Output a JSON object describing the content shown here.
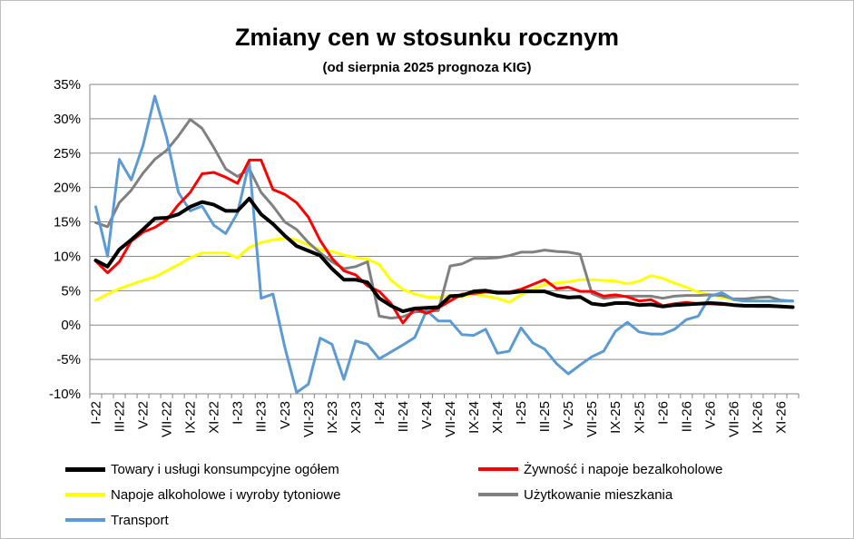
{
  "chart_data": {
    "type": "line",
    "title": "Zmiany cen w stosunku rocznym",
    "subtitle": "(od sierpnia 2025 prognoza  KIG)",
    "ylim": [
      -10,
      35
    ],
    "yticks": [
      "35%",
      "30%",
      "25%",
      "20%",
      "15%",
      "10%",
      "5%",
      "0%",
      "-5%",
      "-10%"
    ],
    "grid": true,
    "legend_position": "bottom",
    "x": [
      "I-22",
      "II-22",
      "III-22",
      "IV-22",
      "V-22",
      "VI-22",
      "VII-22",
      "VIII-22",
      "IX-22",
      "X-22",
      "XI-22",
      "XII-22",
      "I-23",
      "II-23",
      "III-23",
      "IV-23",
      "V-23",
      "VI-23",
      "VII-23",
      "VIII-23",
      "IX-23",
      "X-23",
      "XI-23",
      "XII-23",
      "I-24",
      "II-24",
      "III-24",
      "IV-24",
      "V-24",
      "VI-24",
      "VII-24",
      "VIII-24",
      "IX-24",
      "X-24",
      "XI-24",
      "XII-24",
      "I-25",
      "II-25",
      "III-25",
      "IV-25",
      "V-25",
      "VI-25",
      "VII-25",
      "VIII-25",
      "IX-25",
      "X-25",
      "XI-25",
      "XII-25",
      "I-26",
      "II-26",
      "III-26",
      "IV-26",
      "V-26",
      "VI-26",
      "VII-26",
      "VIII-26",
      "IX-26",
      "X-26",
      "XI-26",
      "XII-26"
    ],
    "xtick_labels": [
      "I-22",
      "III-22",
      "V-22",
      "VII-22",
      "IX-22",
      "XI-22",
      "I-23",
      "III-23",
      "V-23",
      "VII-23",
      "IX-23",
      "XI-23",
      "I-24",
      "III-24",
      "V-24",
      "VII-24",
      "IX-24",
      "XI-24",
      "I-25",
      "III-25",
      "V-25",
      "VII-25",
      "IX-25",
      "XI-25",
      "I-26",
      "III-26",
      "V-26",
      "VII-26",
      "IX-26",
      "XI-26"
    ],
    "series": [
      {
        "name": "Towary i usługi konsumpcyjne ogółem",
        "color": "#000000",
        "width": 4,
        "values": [
          9.4,
          8.5,
          11.0,
          12.4,
          13.9,
          15.5,
          15.6,
          16.1,
          17.2,
          17.9,
          17.5,
          16.6,
          16.6,
          18.4,
          16.1,
          14.7,
          13.0,
          11.5,
          10.8,
          10.1,
          8.2,
          6.6,
          6.6,
          6.2,
          3.9,
          2.8,
          2.0,
          2.4,
          2.5,
          2.6,
          4.2,
          4.3,
          4.9,
          5.0,
          4.7,
          4.7,
          4.9,
          4.9,
          4.9,
          4.3,
          4.0,
          4.1,
          3.1,
          2.9,
          3.2,
          3.2,
          2.9,
          3.0,
          2.7,
          2.9,
          3.0,
          3.1,
          3.2,
          3.1,
          2.9,
          2.8,
          2.8,
          2.8,
          2.7,
          2.6
        ]
      },
      {
        "name": "Żywność i napoje bezalkoholowe",
        "color": "#ff0000",
        "width": 3,
        "values": [
          9.3,
          7.6,
          9.2,
          12.2,
          13.5,
          14.2,
          15.3,
          17.5,
          19.3,
          22.0,
          22.2,
          21.5,
          20.6,
          24.0,
          24.0,
          19.7,
          19.0,
          17.8,
          15.7,
          12.3,
          9.7,
          7.9,
          7.3,
          5.7,
          4.9,
          3.1,
          0.3,
          2.4,
          1.7,
          2.5,
          3.5,
          4.5,
          4.6,
          4.8,
          4.7,
          4.8,
          5.2,
          5.9,
          6.6,
          5.3,
          5.5,
          4.9,
          4.9,
          4.2,
          4.4,
          4.1,
          3.5,
          3.7,
          2.8,
          3.1,
          3.3,
          3.1,
          3.1,
          3.0,
          2.9,
          2.8,
          2.7,
          2.7,
          2.7,
          2.6
        ]
      },
      {
        "name": "Napoje alkoholowe i wyroby tytoniowe",
        "color": "#ffff00",
        "width": 3,
        "values": [
          3.6,
          4.5,
          5.3,
          5.9,
          6.5,
          7.0,
          7.9,
          8.8,
          9.8,
          10.5,
          10.5,
          10.5,
          9.8,
          11.3,
          12.0,
          12.4,
          12.6,
          12.4,
          11.6,
          11.0,
          10.7,
          10.2,
          9.8,
          9.6,
          8.8,
          6.5,
          5.2,
          4.5,
          4.1,
          4.0,
          4.3,
          4.1,
          4.5,
          4.2,
          3.9,
          3.3,
          4.4,
          5.2,
          5.9,
          6.1,
          6.3,
          6.6,
          6.6,
          6.5,
          6.4,
          6.0,
          6.4,
          7.2,
          6.8,
          6.1,
          5.5,
          4.8,
          4.4,
          4.0,
          3.7,
          3.6,
          3.5,
          3.5,
          3.5,
          3.5
        ]
      },
      {
        "name": "Użytkowanie mieszkania",
        "color": "#808080",
        "width": 3,
        "values": [
          14.9,
          14.3,
          17.8,
          19.6,
          22.1,
          24.1,
          25.4,
          27.5,
          29.9,
          28.6,
          25.8,
          22.7,
          21.6,
          22.7,
          19.3,
          17.3,
          15.0,
          13.9,
          12.0,
          10.5,
          9.2,
          8.2,
          8.5,
          9.2,
          1.3,
          1.0,
          1.2,
          1.9,
          2.0,
          2.1,
          8.6,
          8.9,
          9.7,
          9.7,
          9.8,
          10.1,
          10.6,
          10.6,
          10.9,
          10.7,
          10.6,
          10.3,
          4.6,
          3.9,
          4.1,
          4.2,
          4.2,
          4.2,
          3.9,
          4.2,
          4.3,
          4.3,
          4.4,
          4.3,
          3.8,
          3.8,
          4.0,
          4.1,
          3.6,
          3.5
        ]
      },
      {
        "name": "Transport",
        "color": "#5b9bd5",
        "width": 3,
        "values": [
          17.2,
          10.0,
          24.1,
          21.1,
          26.1,
          33.3,
          27.3,
          19.3,
          16.6,
          17.3,
          14.5,
          13.3,
          16.3,
          23.7,
          3.9,
          4.5,
          -3.2,
          -9.8,
          -8.6,
          -1.9,
          -2.8,
          -7.9,
          -2.3,
          -2.8,
          -4.9,
          -3.9,
          -2.9,
          -1.8,
          2.1,
          0.6,
          0.6,
          -1.4,
          -1.5,
          -0.6,
          -4.1,
          -3.8,
          -0.4,
          -2.6,
          -3.5,
          -5.6,
          -7.1,
          -5.8,
          -4.6,
          -3.8,
          -0.9,
          0.4,
          -1.0,
          -1.3,
          -1.3,
          -0.6,
          0.8,
          1.3,
          4.2,
          4.7,
          3.7,
          3.5,
          3.5,
          3.5,
          3.5,
          3.5
        ]
      }
    ]
  }
}
